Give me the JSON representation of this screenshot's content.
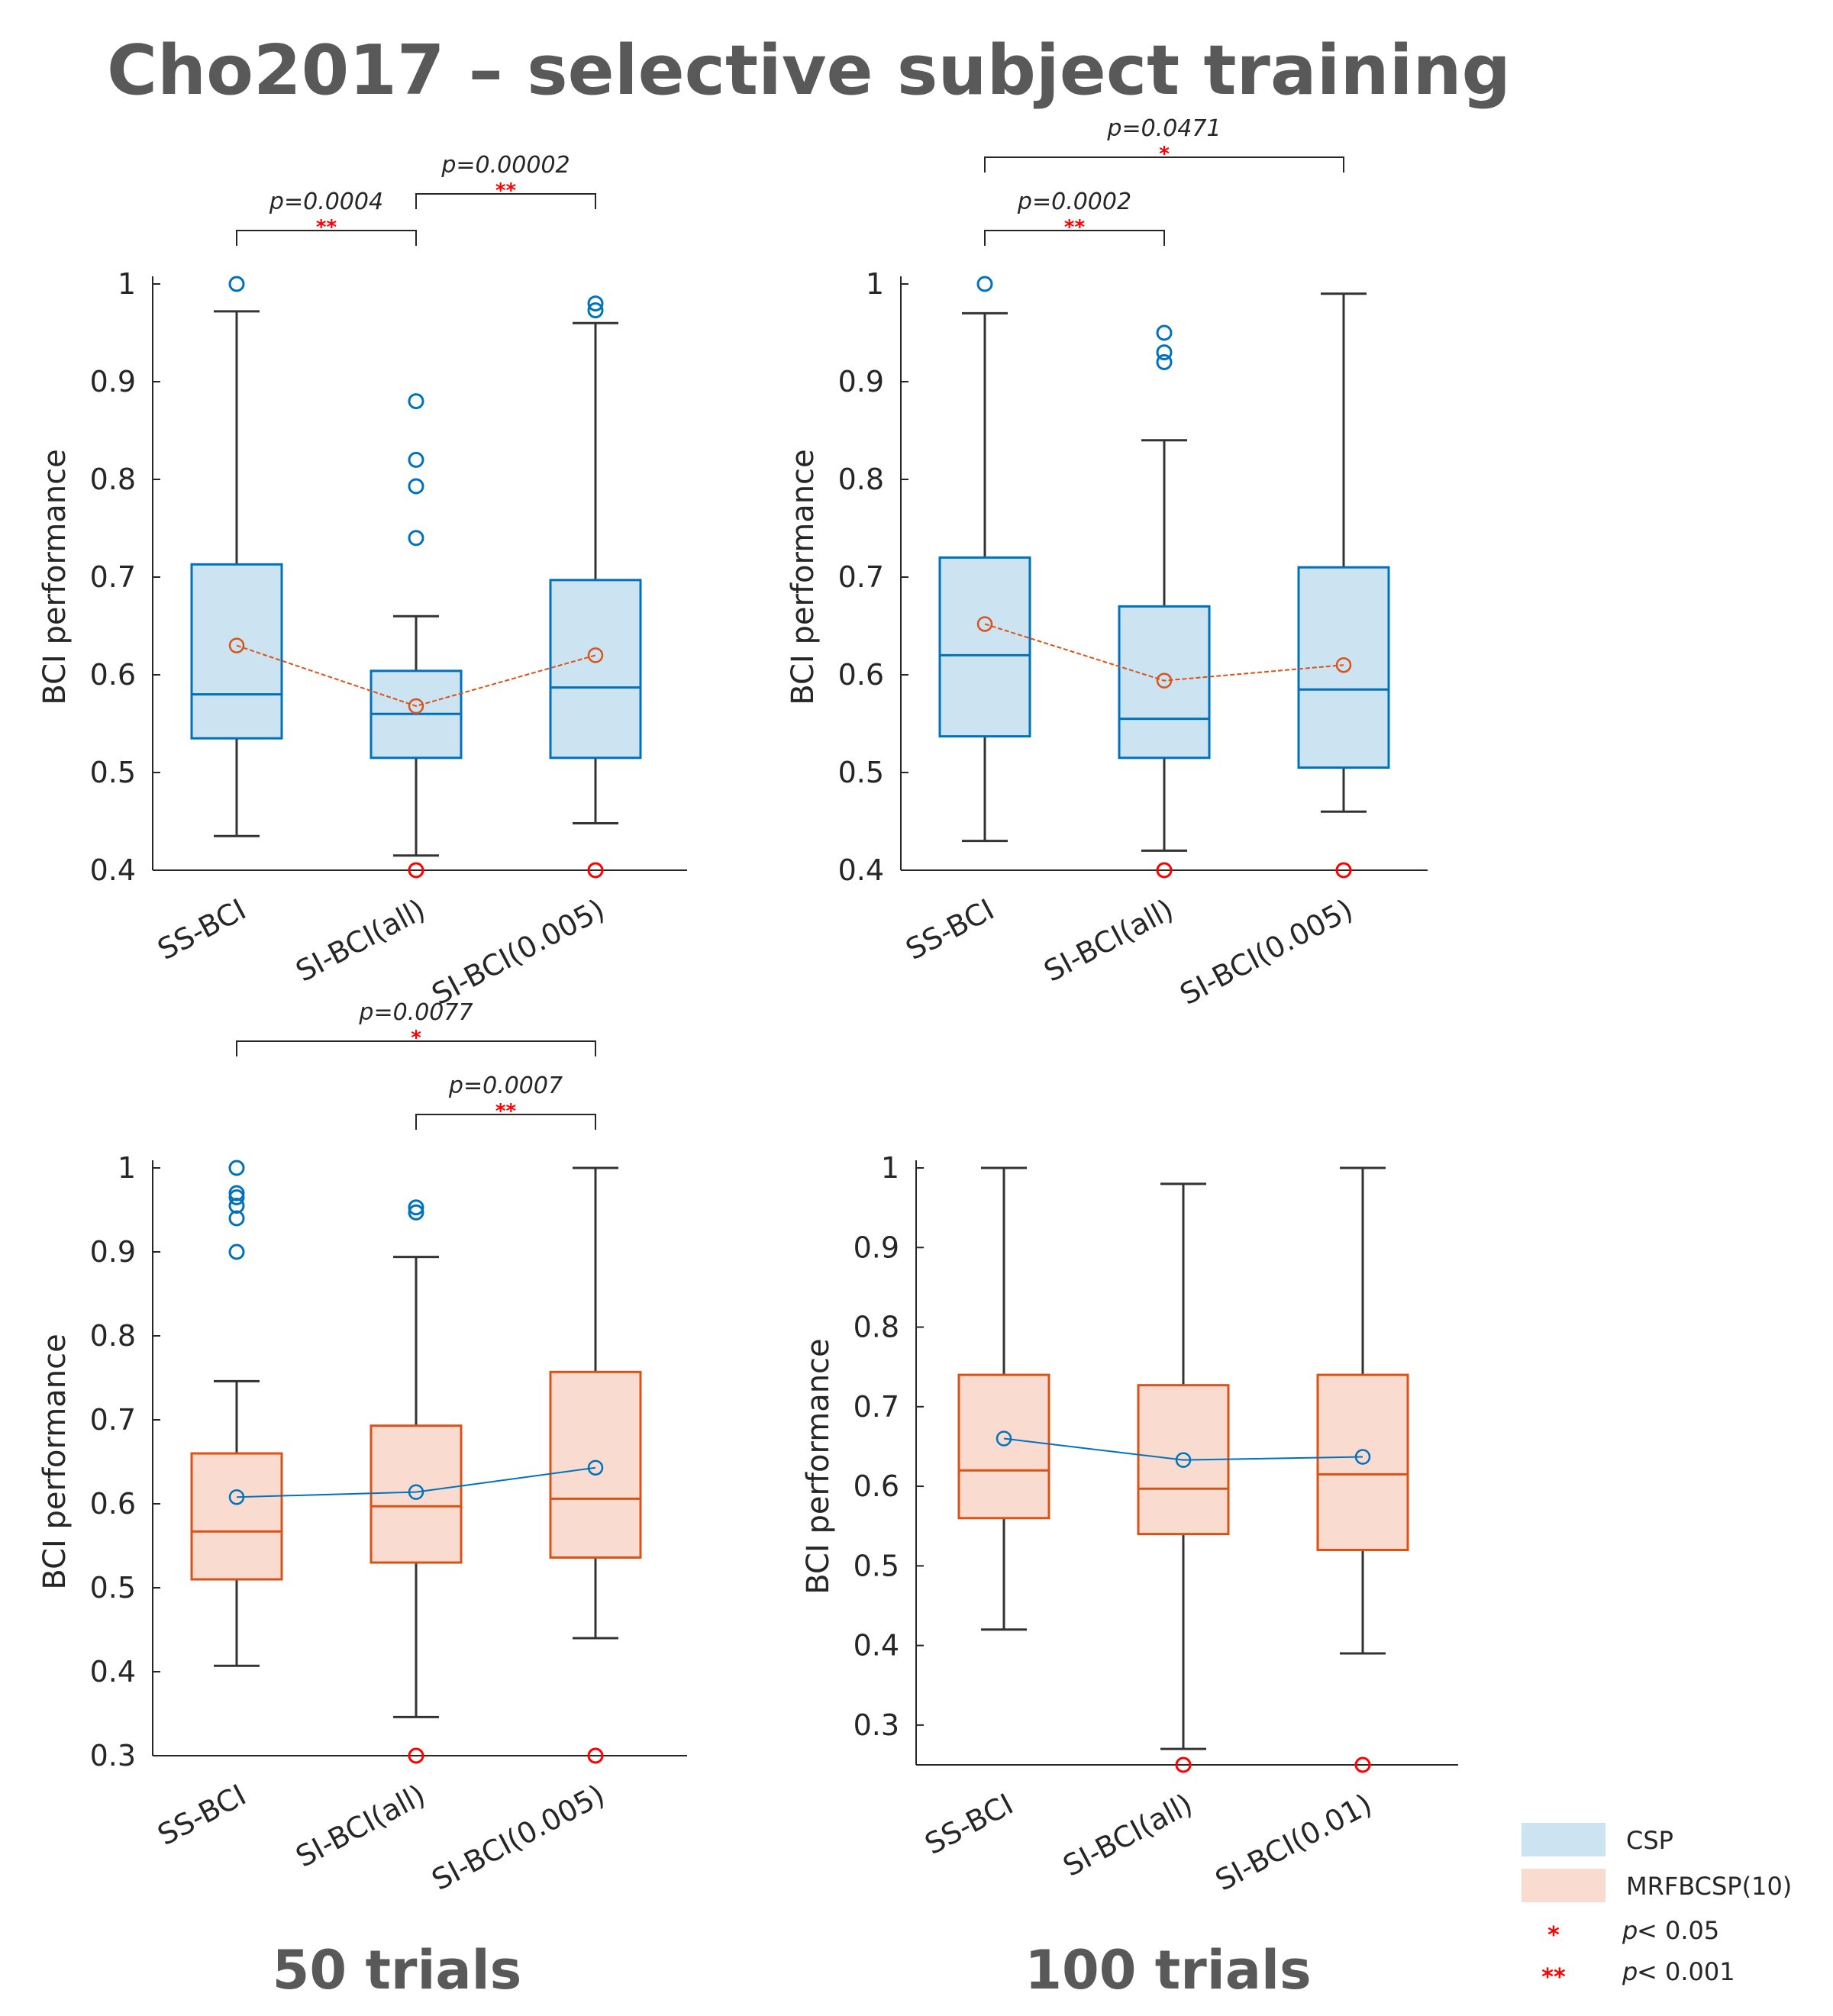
{
  "title": "Cho2017 – selective subject training",
  "column_labels": [
    "50 trials",
    "100 trials"
  ],
  "legend": {
    "items": [
      {
        "label": "CSP",
        "color": "#cce3f2"
      },
      {
        "label": "MRFBCSP(10)",
        "color": "#f9dccf"
      }
    ],
    "sig": [
      {
        "stars": "*",
        "prefix": "p",
        "text": " < 0.05"
      },
      {
        "stars": "**",
        "prefix": "p",
        "text": " < 0.001"
      }
    ]
  },
  "colors": {
    "csp_edge": "#0072bd",
    "csp_fill": "#cce3f2",
    "mrf_edge": "#d95319",
    "mrf_fill": "#f9dccf",
    "whisker": "#333333",
    "low_outlier": "#ff0000"
  },
  "chart_data": [
    {
      "type": "box",
      "method": "CSP",
      "panel": "top-left",
      "ylabel": "BCI performance",
      "ylim": [
        0.4,
        1.0
      ],
      "yticks": [
        0.4,
        0.5,
        0.6,
        0.7,
        0.8,
        0.9,
        1
      ],
      "ytick_labels": [
        "0.4",
        "0.5",
        "0.6",
        "0.7",
        "0.8",
        "0.9",
        "1"
      ],
      "categories": [
        "SS-BCI",
        "SI-BCI(all)",
        "SI-BCI(0.005)"
      ],
      "boxes": [
        {
          "whisker_low": 0.435,
          "q1": 0.535,
          "median": 0.58,
          "q3": 0.713,
          "whisker_high": 0.972,
          "mean": 0.63,
          "outliers_high": [
            1.0
          ],
          "outliers_low": []
        },
        {
          "whisker_low": 0.415,
          "q1": 0.515,
          "median": 0.56,
          "q3": 0.604,
          "whisker_high": 0.66,
          "mean": 0.568,
          "outliers_high": [
            0.74,
            0.793,
            0.82,
            0.88
          ],
          "outliers_low": [
            0.4
          ]
        },
        {
          "whisker_low": 0.448,
          "q1": 0.515,
          "median": 0.587,
          "q3": 0.697,
          "whisker_high": 0.96,
          "mean": 0.62,
          "outliers_high": [
            0.973,
            0.98
          ],
          "outliers_low": [
            0.4
          ]
        }
      ],
      "significance": [
        {
          "from": 0,
          "to": 1,
          "p": "p=0.0004",
          "stars": "**",
          "level": 0
        },
        {
          "from": 1,
          "to": 2,
          "p": "p=0.00002",
          "stars": "**",
          "level": 1
        }
      ]
    },
    {
      "type": "box",
      "method": "CSP",
      "panel": "top-right",
      "ylabel": "BCI performance",
      "ylim": [
        0.4,
        1.0
      ],
      "yticks": [
        0.4,
        0.5,
        0.6,
        0.7,
        0.8,
        0.9,
        1
      ],
      "ytick_labels": [
        "0.4",
        "0.5",
        "0.6",
        "0.7",
        "0.8",
        "0.9",
        "1"
      ],
      "categories": [
        "SS-BCI",
        "SI-BCI(all)",
        "SI-BCI(0.005)"
      ],
      "boxes": [
        {
          "whisker_low": 0.43,
          "q1": 0.537,
          "median": 0.62,
          "q3": 0.72,
          "whisker_high": 0.97,
          "mean": 0.652,
          "outliers_high": [
            1.0
          ],
          "outliers_low": []
        },
        {
          "whisker_low": 0.42,
          "q1": 0.515,
          "median": 0.555,
          "q3": 0.67,
          "whisker_high": 0.84,
          "mean": 0.594,
          "outliers_high": [
            0.92,
            0.93,
            0.95
          ],
          "outliers_low": [
            0.4
          ]
        },
        {
          "whisker_low": 0.46,
          "q1": 0.505,
          "median": 0.585,
          "q3": 0.71,
          "whisker_high": 0.99,
          "mean": 0.61,
          "outliers_high": [],
          "outliers_low": [
            0.4
          ]
        }
      ],
      "significance": [
        {
          "from": 0,
          "to": 1,
          "p": "p=0.0002",
          "stars": "**",
          "level": 0
        },
        {
          "from": 0,
          "to": 2,
          "p": "p=0.0471",
          "stars": "*",
          "level": 2
        }
      ]
    },
    {
      "type": "box",
      "method": "MRFBCSP(10)",
      "panel": "bottom-left",
      "ylabel": "BCI performance",
      "ylim": [
        0.3,
        1.0
      ],
      "yticks": [
        0.3,
        0.4,
        0.5,
        0.6,
        0.7,
        0.8,
        0.9,
        1
      ],
      "ytick_labels": [
        "0.3",
        "0.4",
        "0.5",
        "0.6",
        "0.7",
        "0.8",
        "0.9",
        "1"
      ],
      "categories": [
        "SS-BCI",
        "SI-BCI(all)",
        "SI-BCI(0.005)"
      ],
      "boxes": [
        {
          "whisker_low": 0.407,
          "q1": 0.51,
          "median": 0.567,
          "q3": 0.66,
          "whisker_high": 0.746,
          "mean": 0.608,
          "outliers_high": [
            0.9,
            0.94,
            0.955,
            0.965,
            0.97,
            1.0
          ],
          "outliers_low": []
        },
        {
          "whisker_low": 0.346,
          "q1": 0.53,
          "median": 0.597,
          "q3": 0.693,
          "whisker_high": 0.894,
          "mean": 0.614,
          "outliers_high": [
            0.947,
            0.953
          ],
          "outliers_low": [
            0.3
          ]
        },
        {
          "whisker_low": 0.44,
          "q1": 0.536,
          "median": 0.606,
          "q3": 0.757,
          "whisker_high": 1.0,
          "mean": 0.643,
          "outliers_high": [],
          "outliers_low": [
            0.3
          ]
        }
      ],
      "significance": [
        {
          "from": 1,
          "to": 2,
          "p": "p=0.0007",
          "stars": "**",
          "level": 0
        },
        {
          "from": 0,
          "to": 2,
          "p": "p=0.0077",
          "stars": "*",
          "level": 2
        }
      ]
    },
    {
      "type": "box",
      "method": "MRFBCSP(10)",
      "panel": "bottom-right",
      "ylabel": "BCI performance",
      "ylim": [
        0.25,
        1.0
      ],
      "yticks": [
        0.3,
        0.4,
        0.5,
        0.6,
        0.7,
        0.8,
        0.9,
        1
      ],
      "ytick_labels": [
        "0.3",
        "0.4",
        "0.5",
        "0.6",
        "0.7",
        "0.8",
        "0.9",
        "1"
      ],
      "categories": [
        "SS-BCI",
        "SI-BCI(all)",
        "SI-BCI(0.01)"
      ],
      "boxes": [
        {
          "whisker_low": 0.42,
          "q1": 0.56,
          "median": 0.62,
          "q3": 0.74,
          "whisker_high": 1.0,
          "mean": 0.66,
          "outliers_high": [],
          "outliers_low": []
        },
        {
          "whisker_low": 0.27,
          "q1": 0.54,
          "median": 0.597,
          "q3": 0.727,
          "whisker_high": 0.98,
          "mean": 0.633,
          "outliers_high": [],
          "outliers_low": [
            0.25
          ]
        },
        {
          "whisker_low": 0.39,
          "q1": 0.52,
          "median": 0.615,
          "q3": 0.74,
          "whisker_high": 1.0,
          "mean": 0.637,
          "outliers_high": [],
          "outliers_low": [
            0.25
          ]
        }
      ],
      "significance": []
    }
  ]
}
